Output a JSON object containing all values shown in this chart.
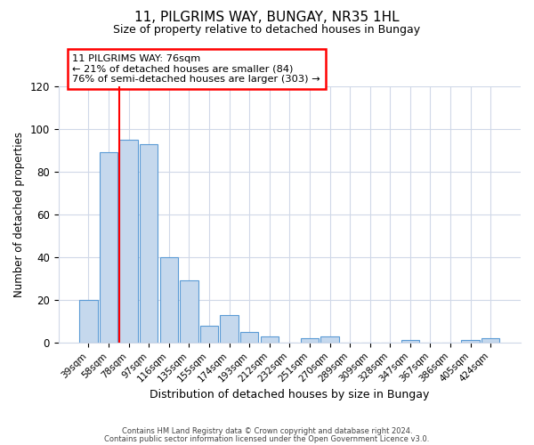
{
  "title": "11, PILGRIMS WAY, BUNGAY, NR35 1HL",
  "subtitle": "Size of property relative to detached houses in Bungay",
  "xlabel": "Distribution of detached houses by size in Bungay",
  "ylabel": "Number of detached properties",
  "bar_color": "#c5d8ed",
  "bar_edge_color": "#5b9bd5",
  "categories": [
    "39sqm",
    "58sqm",
    "78sqm",
    "97sqm",
    "116sqm",
    "135sqm",
    "155sqm",
    "174sqm",
    "193sqm",
    "212sqm",
    "232sqm",
    "251sqm",
    "270sqm",
    "289sqm",
    "309sqm",
    "328sqm",
    "347sqm",
    "367sqm",
    "386sqm",
    "405sqm",
    "424sqm"
  ],
  "values": [
    20,
    89,
    95,
    93,
    40,
    29,
    8,
    13,
    5,
    3,
    0,
    2,
    3,
    0,
    0,
    0,
    1,
    0,
    0,
    1,
    2
  ],
  "redline_index": 2,
  "ylim": [
    0,
    120
  ],
  "yticks": [
    0,
    20,
    40,
    60,
    80,
    100,
    120
  ],
  "annotation_title": "11 PILGRIMS WAY: 76sqm",
  "annotation_line1": "← 21% of detached houses are smaller (84)",
  "annotation_line2": "76% of semi-detached houses are larger (303) →",
  "footer_line1": "Contains HM Land Registry data © Crown copyright and database right 2024.",
  "footer_line2": "Contains public sector information licensed under the Open Government Licence v3.0.",
  "background_color": "#ffffff",
  "grid_color": "#d0d8e8"
}
